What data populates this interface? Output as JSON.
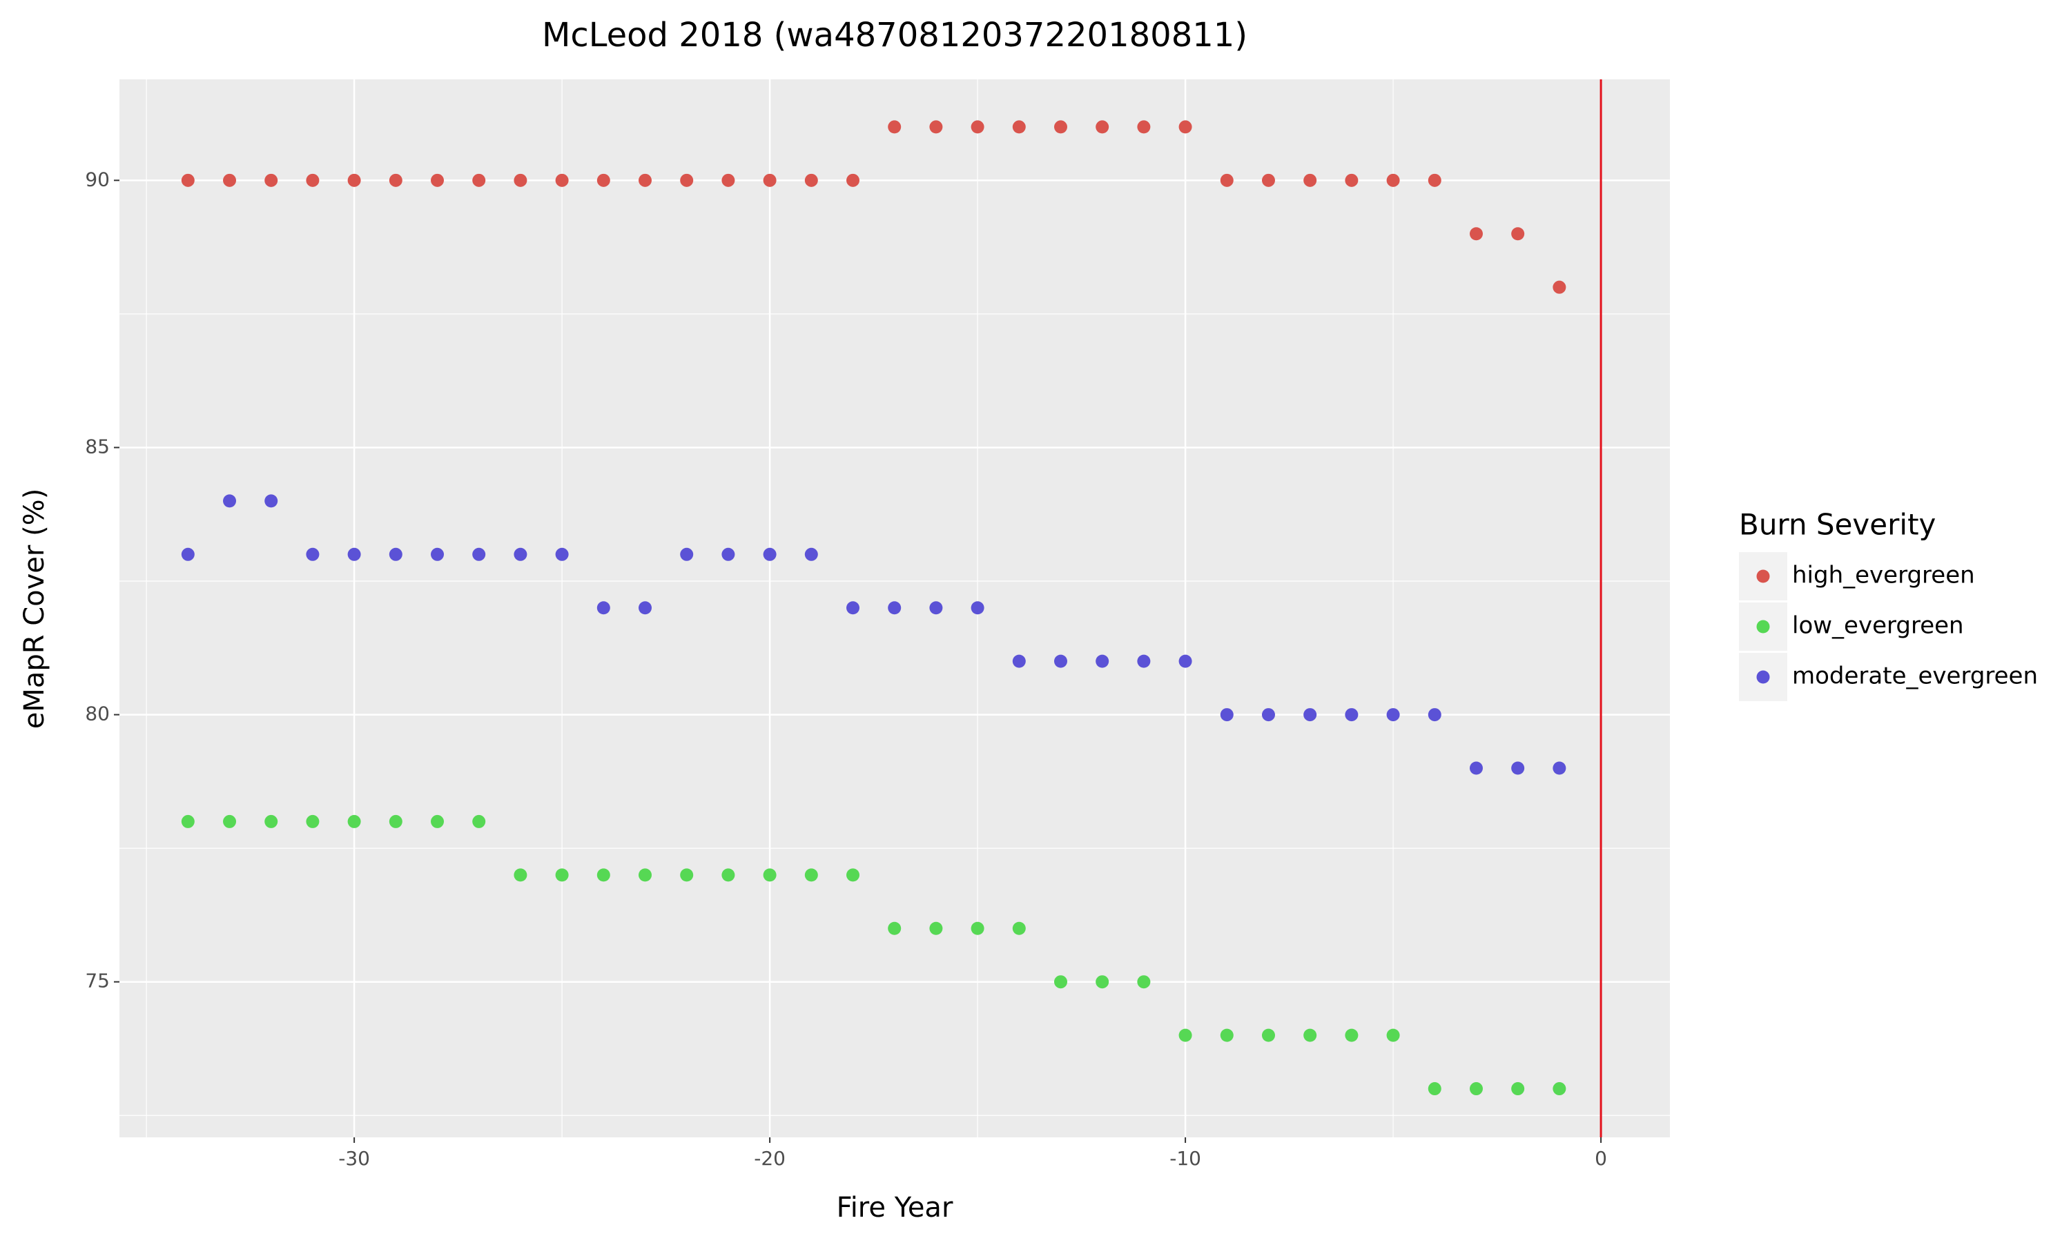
{
  "chart_data": {
    "type": "scatter",
    "title": "McLeod 2018 (wa4870812037220180811)",
    "x_label": "Fire Year",
    "y_label": "eMapR Cover (%)",
    "legend_title": "Burn Severity",
    "legend_position": "right",
    "x": [
      -34,
      -33,
      -32,
      -31,
      -30,
      -29,
      -28,
      -27,
      -26,
      -25,
      -24,
      -23,
      -22,
      -21,
      -20,
      -19,
      -18,
      -17,
      -16,
      -15,
      -14,
      -13,
      -12,
      -11,
      -10,
      -9,
      -8,
      -7,
      -6,
      -5,
      -4,
      -3,
      -2,
      -1
    ],
    "series": [
      {
        "name": "high_evergreen",
        "color": "#d9544d",
        "values": [
          90,
          90,
          90,
          90,
          90,
          90,
          90,
          90,
          90,
          90,
          90,
          90,
          90,
          90,
          90,
          90,
          90,
          91,
          91,
          91,
          91,
          91,
          91,
          91,
          91,
          90,
          90,
          90,
          90,
          90,
          90,
          89,
          89,
          88
        ]
      },
      {
        "name": "low_evergreen",
        "color": "#56d854",
        "values": [
          78,
          78,
          78,
          78,
          78,
          78,
          78,
          78,
          77,
          77,
          77,
          77,
          77,
          77,
          77,
          77,
          77,
          76,
          76,
          76,
          76,
          75,
          75,
          75,
          74,
          74,
          74,
          74,
          74,
          74,
          73,
          73,
          73,
          73
        ]
      },
      {
        "name": "moderate_evergreen",
        "color": "#5b52d6",
        "values": [
          83,
          84,
          84,
          83,
          83,
          83,
          83,
          83,
          83,
          83,
          82,
          82,
          83,
          83,
          83,
          83,
          82,
          82,
          82,
          82,
          81,
          81,
          81,
          81,
          81,
          80,
          80,
          80,
          80,
          80,
          80,
          79,
          79,
          79
        ]
      }
    ],
    "xlim": [
      -35.65,
      1.66
    ],
    "ylim": [
      72.09,
      91.89
    ],
    "xticks": [
      -30,
      -20,
      -10,
      0
    ],
    "yticks": [
      75,
      80,
      85,
      90
    ],
    "grid": true,
    "vline": {
      "x": 0,
      "color": "#e3111c"
    }
  }
}
